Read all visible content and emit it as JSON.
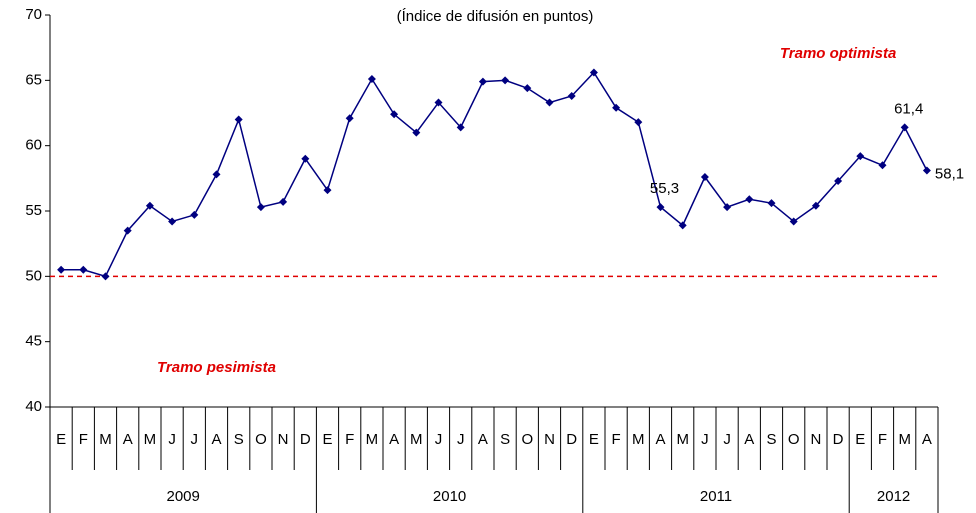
{
  "chart_data": {
    "type": "line",
    "subtitle": "(Índice de difusión en puntos)",
    "categories": [
      "E",
      "F",
      "M",
      "A",
      "M",
      "J",
      "J",
      "A",
      "S",
      "O",
      "N",
      "D",
      "E",
      "F",
      "M",
      "A",
      "M",
      "J",
      "J",
      "A",
      "S",
      "O",
      "N",
      "D",
      "E",
      "F",
      "M",
      "A",
      "M",
      "J",
      "J",
      "A",
      "S",
      "O",
      "N",
      "D",
      "E",
      "F",
      "M",
      "A"
    ],
    "years": [
      "2009",
      "2010",
      "2011",
      "2012"
    ],
    "series": [
      {
        "name": "Índice",
        "color": "#000080",
        "values": [
          50.5,
          50.5,
          50.0,
          53.5,
          55.4,
          54.2,
          54.7,
          57.8,
          62.0,
          55.3,
          55.7,
          59.0,
          56.6,
          62.1,
          65.1,
          62.4,
          61.0,
          63.3,
          61.4,
          64.9,
          65.0,
          64.4,
          63.3,
          63.8,
          65.6,
          62.9,
          61.8,
          55.3,
          53.9,
          57.6,
          55.3,
          55.9,
          55.6,
          54.2,
          55.4,
          57.3,
          59.2,
          58.5,
          61.4,
          58.1
        ],
        "value_labels": [
          null,
          null,
          null,
          null,
          null,
          null,
          null,
          null,
          null,
          null,
          null,
          null,
          null,
          null,
          null,
          null,
          null,
          null,
          null,
          null,
          null,
          null,
          null,
          null,
          null,
          null,
          null,
          "55,3",
          null,
          null,
          null,
          null,
          null,
          null,
          null,
          null,
          null,
          null,
          "61,4",
          "58,1"
        ]
      }
    ],
    "reference_line": {
      "value": 50,
      "color": "#e00000"
    },
    "annotations": [
      {
        "text": "Tramo optimista",
        "x": 35,
        "y": 67
      },
      {
        "text": "Tramo pesimista",
        "x": 7,
        "y": 43
      }
    ],
    "ylim": [
      40,
      70
    ],
    "yticks": [
      40,
      45,
      50,
      55,
      60,
      65,
      70
    ],
    "grid": false
  }
}
